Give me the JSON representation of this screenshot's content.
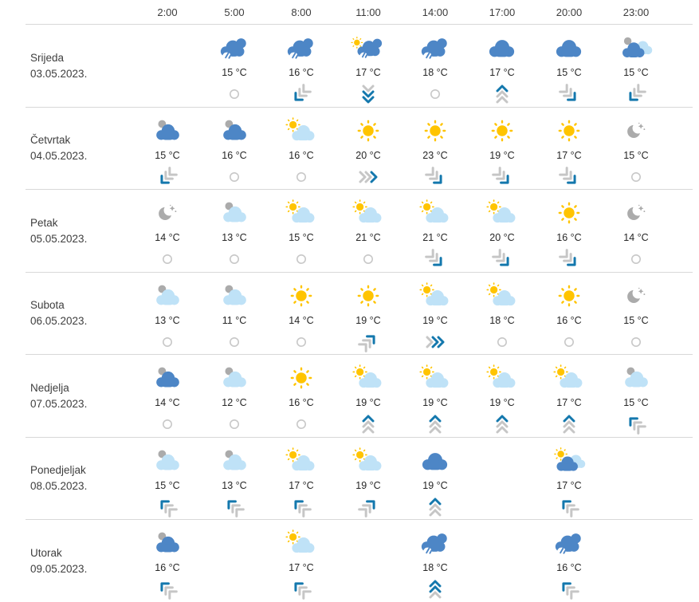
{
  "widget_title": "hourly-weather-forecast",
  "colors": {
    "cloud_blue": "#4d86c6",
    "cloud_light": "#bfe2f7",
    "icon_gray": "#ababab",
    "sun": "#ffc400",
    "wind_blue": "#1478ad",
    "wind_gray": "#c6c6c6"
  },
  "header": {
    "times": [
      "2:00",
      "5:00",
      "8:00",
      "11:00",
      "14:00",
      "17:00",
      "20:00",
      "23:00"
    ]
  },
  "days": [
    {
      "name": "Srijeda",
      "date": "03.05.2023.",
      "cells": [
        null,
        {
          "time": "5:00",
          "icon": "rain-cloud",
          "temp": "15 °C",
          "wind": "calm"
        },
        {
          "time": "8:00",
          "icon": "rain-cloud",
          "temp": "16 °C",
          "wind": "down-left"
        },
        {
          "time": "11:00",
          "icon": "sun-rain-cloud",
          "temp": "17 °C",
          "wind": "down",
          "wind_strength": 2
        },
        {
          "time": "14:00",
          "icon": "rain-cloud",
          "temp": "18 °C",
          "wind": "calm"
        },
        {
          "time": "17:00",
          "icon": "cloud-blue",
          "temp": "17 °C",
          "wind": "up"
        },
        {
          "time": "20:00",
          "icon": "cloud-blue",
          "temp": "15 °C",
          "wind": "down-right"
        },
        {
          "time": "23:00",
          "icon": "night-clouds",
          "temp": "15 °C",
          "wind": "down-left"
        }
      ]
    },
    {
      "name": "Četvrtak",
      "date": "04.05.2023.",
      "cells": [
        {
          "time": "2:00",
          "icon": "cloud-blue-gray",
          "temp": "15 °C",
          "wind": "down-left"
        },
        {
          "time": "5:00",
          "icon": "cloud-blue-gray",
          "temp": "16 °C",
          "wind": "calm"
        },
        {
          "time": "8:00",
          "icon": "partly-sunny",
          "temp": "16 °C",
          "wind": "calm"
        },
        {
          "time": "11:00",
          "icon": "sunny",
          "temp": "20 °C",
          "wind": "right"
        },
        {
          "time": "14:00",
          "icon": "sunny",
          "temp": "23 °C",
          "wind": "down-right"
        },
        {
          "time": "17:00",
          "icon": "sunny",
          "temp": "19 °C",
          "wind": "down-right"
        },
        {
          "time": "20:00",
          "icon": "sunny",
          "temp": "17 °C",
          "wind": "down-right"
        },
        {
          "time": "23:00",
          "icon": "moon-stars",
          "temp": "15 °C",
          "wind": "calm"
        }
      ]
    },
    {
      "name": "Petak",
      "date": "05.05.2023.",
      "cells": [
        {
          "time": "2:00",
          "icon": "moon-stars",
          "temp": "14 °C",
          "wind": "calm"
        },
        {
          "time": "5:00",
          "icon": "cloud-lightblue-gray",
          "temp": "13 °C",
          "wind": "calm"
        },
        {
          "time": "8:00",
          "icon": "partly-sunny",
          "temp": "15 °C",
          "wind": "calm"
        },
        {
          "time": "11:00",
          "icon": "partly-sunny",
          "temp": "21 °C",
          "wind": "calm"
        },
        {
          "time": "14:00",
          "icon": "partly-sunny",
          "temp": "21 °C",
          "wind": "down-right"
        },
        {
          "time": "17:00",
          "icon": "partly-sunny",
          "temp": "20 °C",
          "wind": "down-right"
        },
        {
          "time": "20:00",
          "icon": "sunny",
          "temp": "16 °C",
          "wind": "down-right"
        },
        {
          "time": "23:00",
          "icon": "moon-stars",
          "temp": "14 °C",
          "wind": "calm"
        }
      ]
    },
    {
      "name": "Subota",
      "date": "06.05.2023.",
      "cells": [
        {
          "time": "2:00",
          "icon": "cloud-lightblue-gray",
          "temp": "13 °C",
          "wind": "calm"
        },
        {
          "time": "5:00",
          "icon": "cloud-lightblue-gray",
          "temp": "11 °C",
          "wind": "calm"
        },
        {
          "time": "8:00",
          "icon": "sunny",
          "temp": "14 °C",
          "wind": "calm"
        },
        {
          "time": "11:00",
          "icon": "sunny",
          "temp": "19 °C",
          "wind": "up-right"
        },
        {
          "time": "14:00",
          "icon": "partly-sunny",
          "temp": "19 °C",
          "wind": "right",
          "wind_strength": 2
        },
        {
          "time": "17:00",
          "icon": "partly-sunny",
          "temp": "18 °C",
          "wind": "calm"
        },
        {
          "time": "20:00",
          "icon": "sunny",
          "temp": "16 °C",
          "wind": "calm"
        },
        {
          "time": "23:00",
          "icon": "moon-stars",
          "temp": "15 °C",
          "wind": "calm"
        }
      ]
    },
    {
      "name": "Nedjelja",
      "date": "07.05.2023.",
      "cells": [
        {
          "time": "2:00",
          "icon": "cloud-blue-gray",
          "temp": "14 °C",
          "wind": "calm"
        },
        {
          "time": "5:00",
          "icon": "cloud-lightblue-gray",
          "temp": "12 °C",
          "wind": "calm"
        },
        {
          "time": "8:00",
          "icon": "sunny",
          "temp": "16 °C",
          "wind": "calm"
        },
        {
          "time": "11:00",
          "icon": "partly-sunny",
          "temp": "19 °C",
          "wind": "up"
        },
        {
          "time": "14:00",
          "icon": "partly-sunny",
          "temp": "19 °C",
          "wind": "up"
        },
        {
          "time": "17:00",
          "icon": "partly-sunny",
          "temp": "19 °C",
          "wind": "up"
        },
        {
          "time": "20:00",
          "icon": "partly-sunny",
          "temp": "17 °C",
          "wind": "up"
        },
        {
          "time": "23:00",
          "icon": "cloud-lightblue-gray",
          "temp": "15 °C",
          "wind": "up-left"
        }
      ]
    },
    {
      "name": "Ponedjeljak",
      "date": "08.05.2023.",
      "cells": [
        {
          "time": "2:00",
          "icon": "cloud-lightblue-gray",
          "temp": "15 °C",
          "wind": "up-left"
        },
        {
          "time": "5:00",
          "icon": "cloud-lightblue-gray",
          "temp": "13 °C",
          "wind": "up-left"
        },
        {
          "time": "8:00",
          "icon": "partly-sunny",
          "temp": "17 °C",
          "wind": "up-left"
        },
        {
          "time": "11:00",
          "icon": "partly-sunny",
          "temp": "19 °C",
          "wind": "up-right"
        },
        {
          "time": "14:00",
          "icon": "cloud-blue",
          "temp": "19 °C",
          "wind": "up"
        },
        null,
        {
          "time": "20:00",
          "icon": "sun-clouds",
          "temp": "17 °C",
          "wind": "up-left"
        },
        null
      ]
    },
    {
      "name": "Utorak",
      "date": "09.05.2023.",
      "cells": [
        {
          "time": "2:00",
          "icon": "cloud-blue-gray",
          "temp": "16 °C",
          "wind": "up-left"
        },
        null,
        {
          "time": "8:00",
          "icon": "partly-sunny",
          "temp": "17 °C",
          "wind": "up-left"
        },
        null,
        {
          "time": "14:00",
          "icon": "rain-cloud",
          "temp": "18 °C",
          "wind": "up",
          "wind_strength": 2
        },
        null,
        {
          "time": "20:00",
          "icon": "rain-cloud",
          "temp": "16 °C",
          "wind": "up-left"
        },
        null
      ]
    }
  ]
}
